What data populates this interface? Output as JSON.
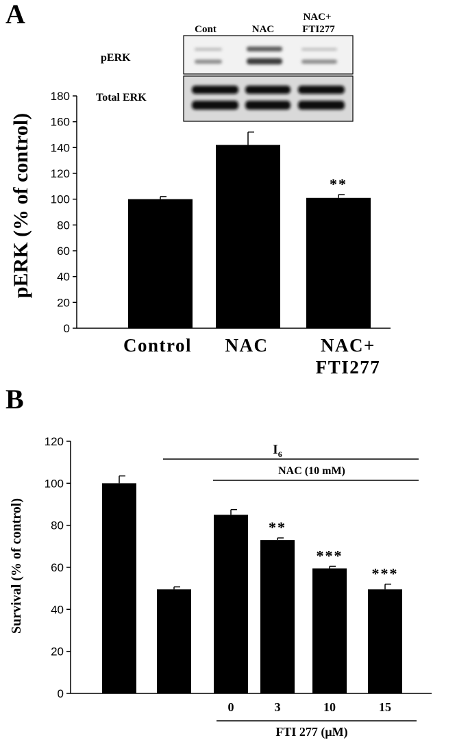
{
  "panels": {
    "a": {
      "label": "A"
    },
    "b": {
      "label": "B"
    }
  },
  "blot": {
    "lane_labels": [
      "Cont",
      "NAC",
      "NAC+",
      "FTI277"
    ],
    "row_labels": [
      "pERK",
      "Total ERK"
    ]
  },
  "chart_data": [
    {
      "type": "bar",
      "panel": "A",
      "categories": [
        "Control",
        "NAC",
        "NAC+ FTI277"
      ],
      "category_lines": [
        [
          "Control"
        ],
        [
          "NAC"
        ],
        [
          "NAC+",
          "FTI277"
        ]
      ],
      "values": [
        100,
        142,
        101
      ],
      "errors": [
        2,
        10,
        2.5
      ],
      "annotations": [
        "",
        "",
        "**"
      ],
      "ylabel": "pERK (% of control)",
      "ylim": [
        0,
        180
      ],
      "yticks": [
        0,
        20,
        40,
        60,
        80,
        100,
        120,
        140,
        160,
        180
      ],
      "bar_color": "#000000",
      "grid": false
    },
    {
      "type": "bar",
      "panel": "B",
      "categories": [
        "",
        "",
        "0",
        "3",
        "10",
        "15"
      ],
      "values": [
        100,
        49.5,
        85,
        73,
        59.5,
        49.5
      ],
      "errors": [
        3.5,
        1.2,
        2.5,
        1,
        1,
        2.5
      ],
      "annotations": [
        "",
        "",
        "",
        "**",
        "***",
        "***"
      ],
      "ylabel": "Survival (% of control)",
      "xlabel": "FTI 277 (μM)",
      "group_labels": {
        "i6_base": "I",
        "i6_sub": "6",
        "nac": "NAC (10 mM)"
      },
      "ylim": [
        0,
        120
      ],
      "yticks": [
        0,
        20,
        40,
        60,
        80,
        100,
        120
      ],
      "bar_color": "#000000",
      "grid": false
    }
  ]
}
